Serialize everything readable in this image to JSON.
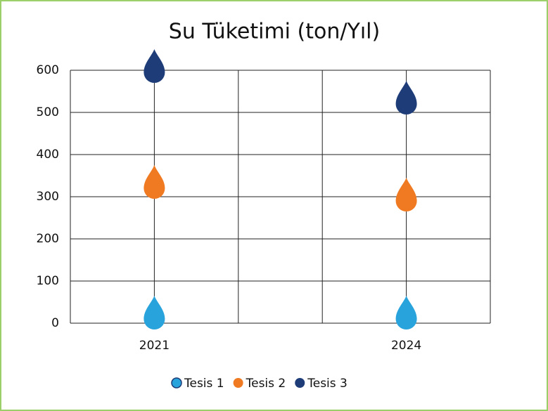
{
  "chart_data": {
    "type": "drop",
    "title": "Su Tüketimi (ton/Yıl)",
    "x": [
      2021,
      2024
    ],
    "xlim": [
      2020,
      2025
    ],
    "xticks": [
      2021,
      2024
    ],
    "ylim": [
      0,
      600
    ],
    "yticks": [
      0,
      100,
      200,
      300,
      400,
      500,
      600
    ],
    "grid": true,
    "series": [
      {
        "name": "Tesis 1",
        "color": "#29a3dc",
        "values": [
          10,
          10
        ]
      },
      {
        "name": "Tesis 2",
        "color": "#f07a22",
        "values": [
          320,
          290
        ]
      },
      {
        "name": "Tesis 3",
        "color": "#1d3c78",
        "values": [
          595,
          520
        ]
      }
    ]
  }
}
